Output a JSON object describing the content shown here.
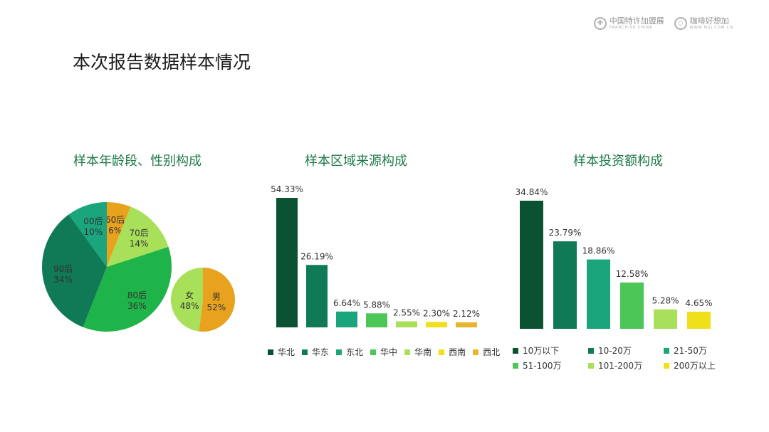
{
  "header": {
    "title": "本次报告数据样本情况",
    "logo1_cn": "中国特许加盟展",
    "logo1_en": "FRANCHISE CHINA",
    "logo2_cn": "咖啡好想加",
    "logo2_en": "WWW.MXJ.COM.CN"
  },
  "sections": {
    "age_gender_title": "样本年龄段、性别构成",
    "region_title": "样本区域来源构成",
    "investment_title": "样本投资额构成"
  },
  "colors": {
    "dark_green": "#0a5232",
    "green": "#0f7a55",
    "teal": "#1aa57c",
    "mid_green": "#4cc757",
    "light_green": "#a8e05a",
    "yellow": "#f0e01c",
    "orange": "#e8a21e",
    "bright_green": "#1fb449"
  },
  "chart_data": [
    {
      "type": "pie",
      "categories": [
        "60后",
        "70后",
        "80后",
        "90后",
        "00后"
      ],
      "values": [
        6,
        14,
        36,
        34,
        10
      ],
      "labels": [
        "6%",
        "14%",
        "36%",
        "34%",
        "10%"
      ],
      "colors": [
        "#e8a21e",
        "#a8e05a",
        "#1fb449",
        "#0f7a55",
        "#1aa57c"
      ]
    },
    {
      "type": "pie",
      "categories": [
        "男",
        "女"
      ],
      "values": [
        52,
        48
      ],
      "labels": [
        "52%",
        "48%"
      ],
      "colors": [
        "#e8a21e",
        "#a8e05a"
      ]
    },
    {
      "type": "bar",
      "categories": [
        "华北",
        "华东",
        "东北",
        "华中",
        "华南",
        "西南",
        "西北"
      ],
      "values": [
        54.33,
        26.19,
        6.64,
        5.88,
        2.55,
        2.3,
        2.12
      ],
      "labels": [
        "54.33%",
        "26.19%",
        "6.64%",
        "5.88%",
        "2.55%",
        "2.30%",
        "2.12%"
      ],
      "colors": [
        "#0a5232",
        "#0f7a55",
        "#1aa57c",
        "#4cc757",
        "#a8e05a",
        "#f0e01c",
        "#e8b52e"
      ],
      "legend": "bottom"
    },
    {
      "type": "bar",
      "categories": [
        "10万以下",
        "10-20万",
        "21-50万",
        "51-100万",
        "101-200万",
        "200万以上"
      ],
      "values": [
        34.84,
        23.79,
        18.86,
        12.58,
        5.28,
        4.65
      ],
      "labels": [
        "34.84%",
        "23.79%",
        "18.86%",
        "12.58%",
        "5.28%",
        "4.65%"
      ],
      "colors": [
        "#0a5232",
        "#0f7a55",
        "#1aa57c",
        "#4cc757",
        "#a8e05a",
        "#f0e01c"
      ],
      "legend": "bottom"
    }
  ]
}
